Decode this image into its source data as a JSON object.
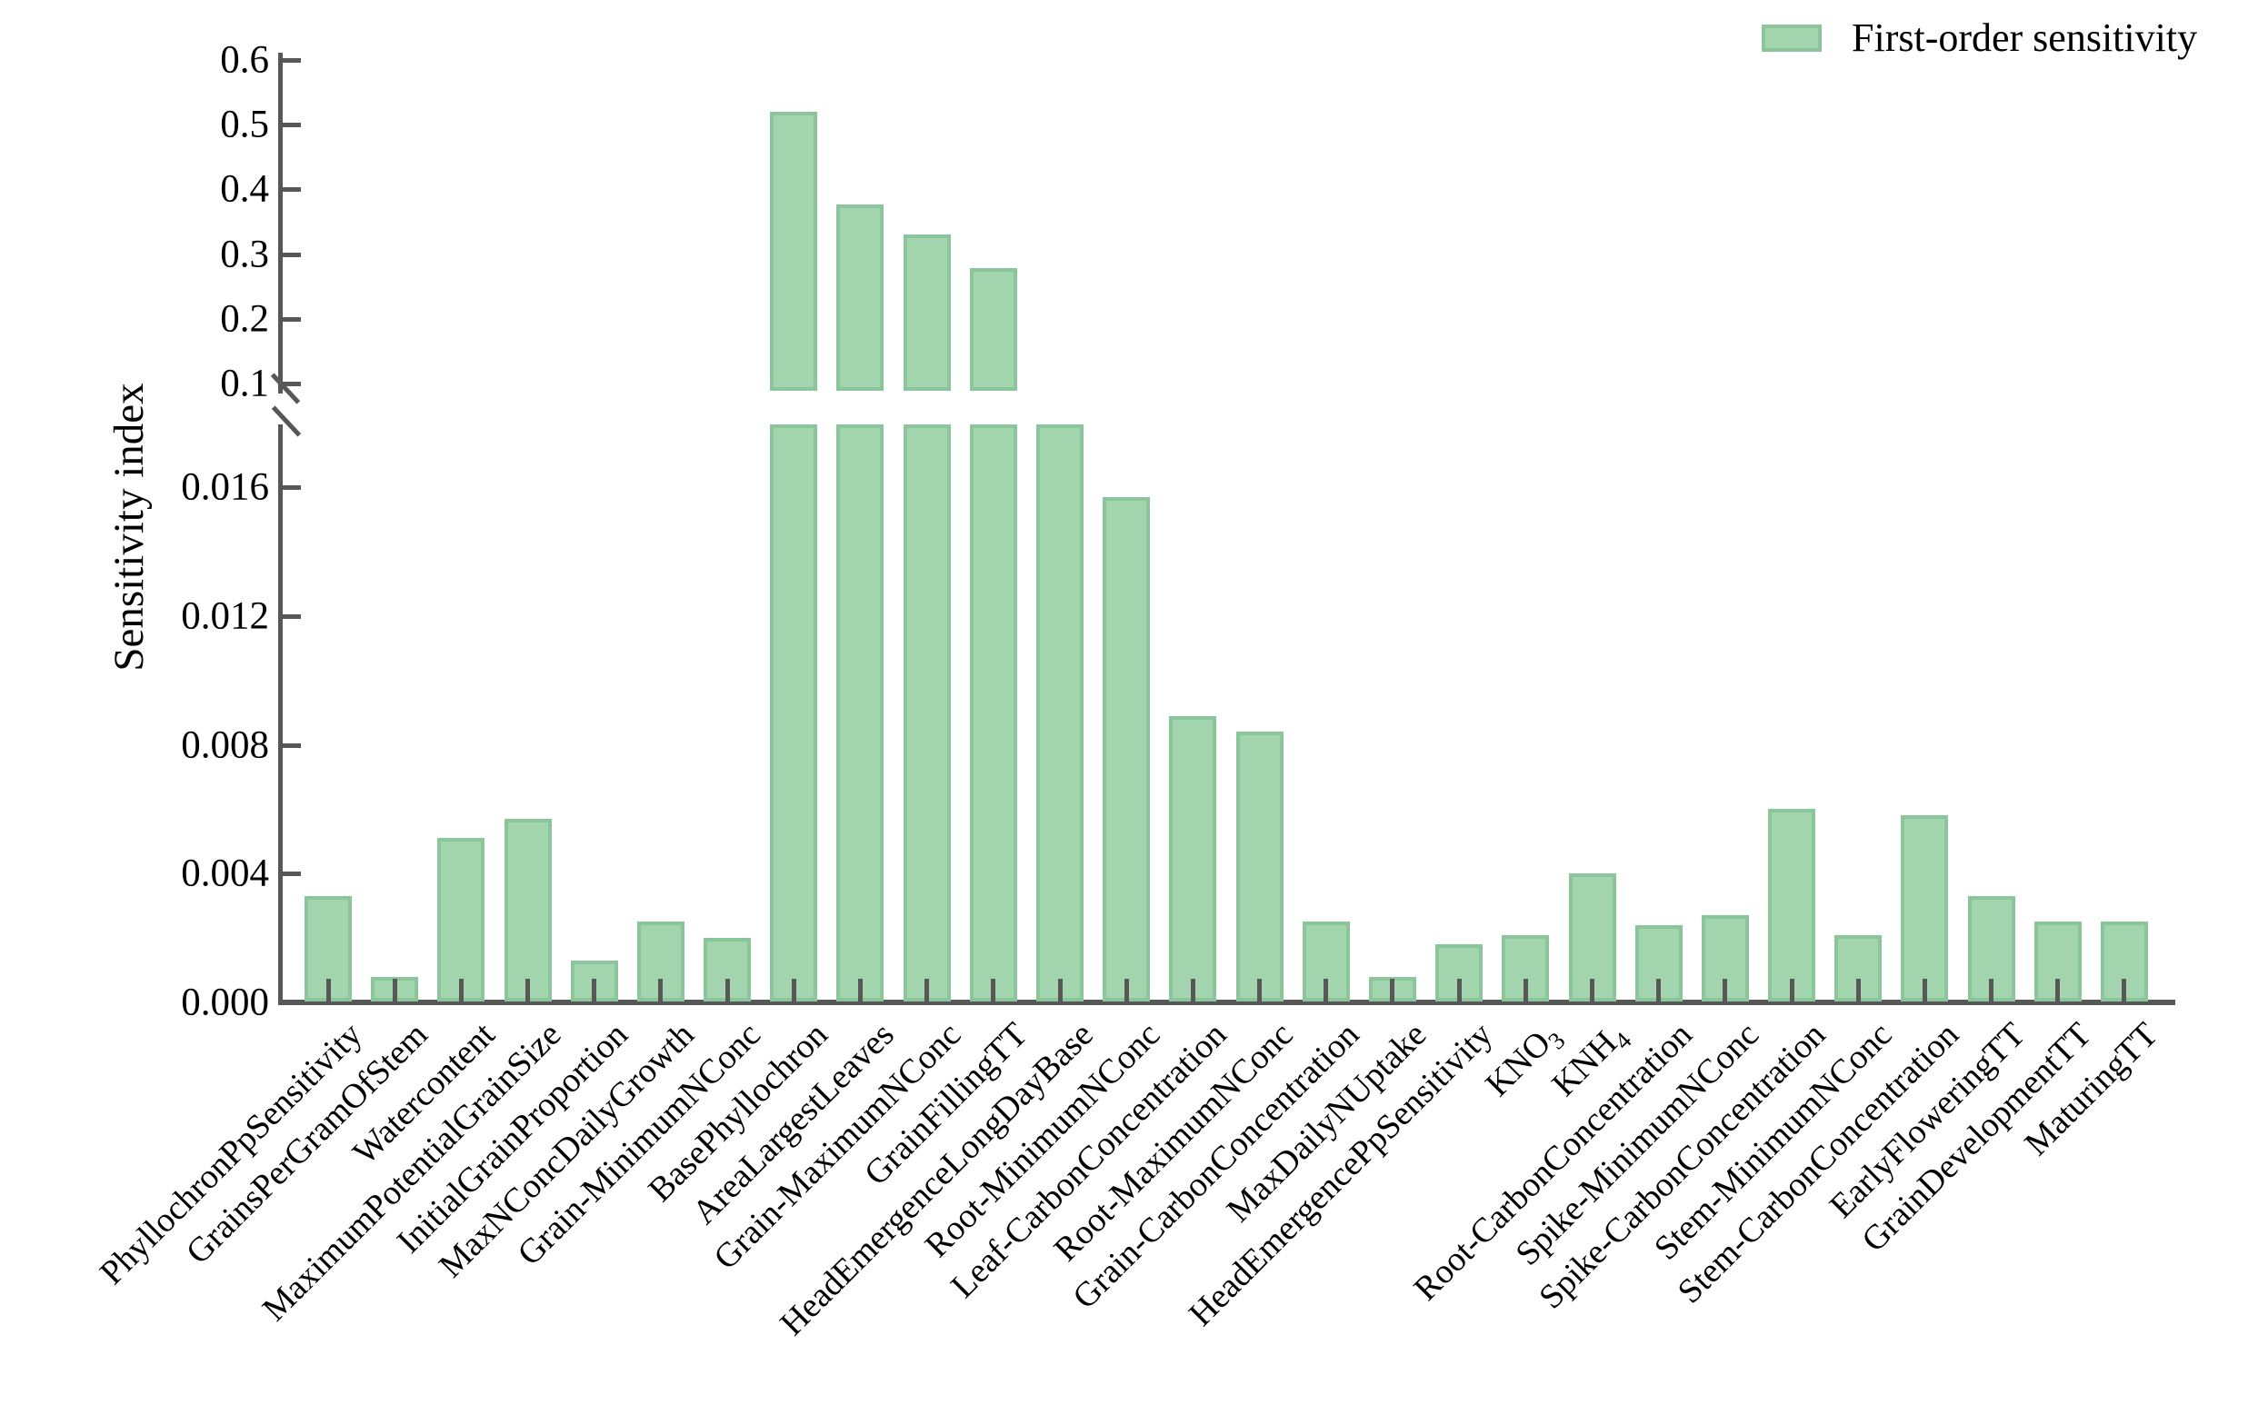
{
  "chart_data": {
    "type": "bar",
    "title": "",
    "xlabel": "",
    "ylabel": "Sensitivity index",
    "legend": [
      "First-order sensitivity"
    ],
    "legend_position": "top-right",
    "grid": false,
    "axis_break": {
      "lower_range": [
        0,
        0.018
      ],
      "upper_range": [
        0.1,
        0.6
      ],
      "lower_tick_values": [
        0.0,
        0.004,
        0.008,
        0.012,
        0.016
      ],
      "lower_tick_labels": [
        "0.000",
        "0.004",
        "0.008",
        "0.012",
        "0.016"
      ],
      "upper_tick_values": [
        0.1,
        0.2,
        0.3,
        0.4,
        0.5,
        0.6
      ],
      "upper_tick_labels": [
        "0.1",
        "0.2",
        "0.3",
        "0.4",
        "0.5",
        "0.6"
      ]
    },
    "bars": [
      {
        "label": "PhyllochronPpSensitivity",
        "value": 0.0033
      },
      {
        "label": "GrainsPerGramOfStem",
        "value": 0.0008
      },
      {
        "label": "Watercontent",
        "value": 0.0051
      },
      {
        "label": "MaximumPotentialGrainSize",
        "value": 0.0057
      },
      {
        "label": "InitialGrainProportion",
        "value": 0.0013
      },
      {
        "label": "MaxNConcDailyGrowth",
        "value": 0.0025
      },
      {
        "label": "Grain-MinimumNConc",
        "value": 0.002
      },
      {
        "label": "BasePhyllochron",
        "value": 0.52
      },
      {
        "label": "AreaLargestLeaves",
        "value": 0.377
      },
      {
        "label": "Grain-MaximumNConc",
        "value": 0.33
      },
      {
        "label": "GrainFillingTT",
        "value": 0.278
      },
      {
        "label": "HeadEmergenceLongDayBase",
        "value": 0.018,
        "clipped_at_break": true
      },
      {
        "label": "Root-MinimumNConc",
        "value": 0.0157
      },
      {
        "label": "Leaf-CarbonConcentration",
        "value": 0.0089
      },
      {
        "label": "Root-MaximumNConc",
        "value": 0.0084
      },
      {
        "label": "Grain-CarbonConcentration",
        "value": 0.0025
      },
      {
        "label": "MaxDailyNUptake",
        "value": 0.0008
      },
      {
        "label": "HeadEmergencePpSensitivity",
        "value": 0.0018
      },
      {
        "label": "KNO",
        "label_sub": "3",
        "value": 0.0021
      },
      {
        "label": "KNH",
        "label_sub": "4",
        "value": 0.004
      },
      {
        "label": "Root-CarbonConcentration",
        "value": 0.0024
      },
      {
        "label": "Spike-MinimumNConc",
        "value": 0.0027
      },
      {
        "label": "Spike-CarbonConcentration",
        "value": 0.006
      },
      {
        "label": "Stem-MinimumNConc",
        "value": 0.0021
      },
      {
        "label": "Stem-CarbonConcentration",
        "value": 0.0058
      },
      {
        "label": "EarlyFloweringTT",
        "value": 0.0033
      },
      {
        "label": "GrainDevelopmentTT",
        "value": 0.0025
      },
      {
        "label": "MaturingTT",
        "value": 0.0025
      }
    ],
    "colors": {
      "bar_fill": "#a2d4ad",
      "bar_edge": "#8bc69b",
      "axis": "#575757",
      "text": "#000000",
      "background": "#ffffff"
    }
  }
}
